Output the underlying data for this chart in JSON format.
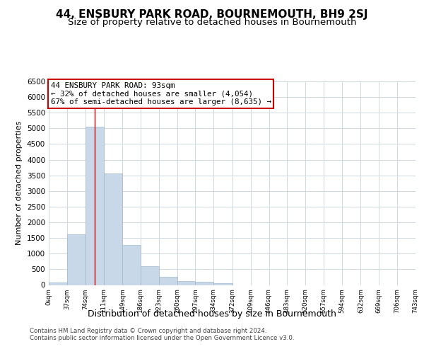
{
  "title": "44, ENSBURY PARK ROAD, BOURNEMOUTH, BH9 2SJ",
  "subtitle": "Size of property relative to detached houses in Bournemouth",
  "xlabel": "Distribution of detached houses by size in Bournemouth",
  "ylabel": "Number of detached properties",
  "bar_color": "#c8d8e8",
  "bar_edge_color": "#a0b8cc",
  "grid_color": "#d0d8e0",
  "annotation_box_color": "#cc0000",
  "property_line_color": "#cc0000",
  "property_value": 93,
  "annotation_text_line1": "44 ENSBURY PARK ROAD: 93sqm",
  "annotation_text_line2": "← 32% of detached houses are smaller (4,054)",
  "annotation_text_line3": "67% of semi-detached houses are larger (8,635) →",
  "footer_line1": "Contains HM Land Registry data © Crown copyright and database right 2024.",
  "footer_line2": "Contains public sector information licensed under the Open Government Licence v3.0.",
  "bins": [
    0,
    37,
    74,
    111,
    149,
    186,
    223,
    260,
    297,
    334,
    372,
    409,
    446,
    483,
    520,
    557,
    594,
    632,
    669,
    706,
    743
  ],
  "bin_labels": [
    "0sqm",
    "37sqm",
    "74sqm",
    "111sqm",
    "149sqm",
    "186sqm",
    "223sqm",
    "260sqm",
    "297sqm",
    "334sqm",
    "372sqm",
    "409sqm",
    "446sqm",
    "483sqm",
    "520sqm",
    "557sqm",
    "594sqm",
    "632sqm",
    "669sqm",
    "706sqm",
    "743sqm"
  ],
  "bar_heights": [
    75,
    1625,
    5050,
    3550,
    1275,
    600,
    270,
    125,
    100,
    50,
    0,
    0,
    0,
    0,
    0,
    0,
    0,
    0,
    0,
    0
  ],
  "ylim": [
    0,
    6500
  ],
  "yticks": [
    0,
    500,
    1000,
    1500,
    2000,
    2500,
    3000,
    3500,
    4000,
    4500,
    5000,
    5500,
    6000,
    6500
  ],
  "background_color": "#ffffff",
  "title_fontsize": 11,
  "subtitle_fontsize": 9.5,
  "xlabel_fontsize": 9,
  "ylabel_fontsize": 8
}
